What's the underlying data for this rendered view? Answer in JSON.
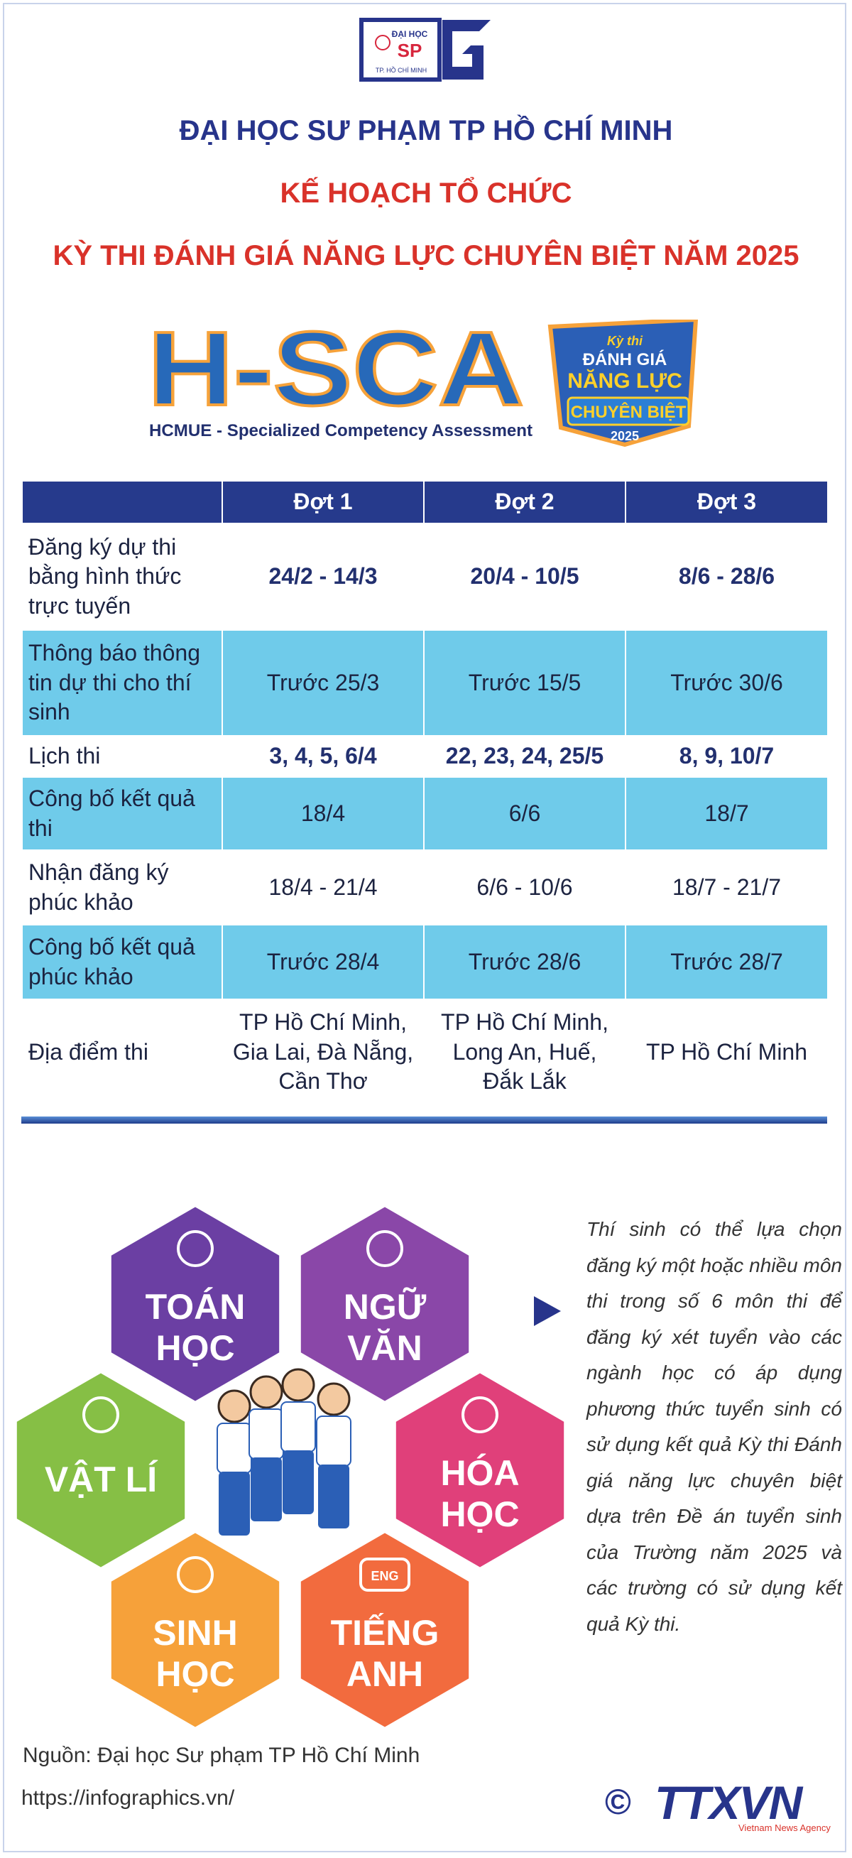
{
  "logo": {
    "top": "ĐẠI HỌC",
    "mark": "SP",
    "bottom": "TP. HỒ CHÍ MINH"
  },
  "header": {
    "title": "ĐẠI HỌC SƯ PHẠM TP HỒ CHÍ MINH",
    "subtitle": "KẾ HOẠCH TỔ CHỨC",
    "subtitle2": "KỲ THI ĐÁNH GIÁ NĂNG LỰC CHUYÊN BIỆT NĂM 2025"
  },
  "brand": {
    "name": "H-SCA",
    "tagline": "HCMUE - Specialized Competency Assessment",
    "badge": [
      "Kỳ thi",
      "ĐÁNH GIÁ",
      "NĂNG LỰC",
      "CHUYÊN BIỆT",
      "2025"
    ]
  },
  "table": {
    "columns": [
      "Đợt 1",
      "Đợt 2",
      "Đợt 3"
    ],
    "rows": [
      {
        "label": "Đăng ký dự thi bằng hình thức trực tuyến",
        "cells": [
          "24/2 - 14/3",
          "20/4 - 10/5",
          "8/6 - 28/6"
        ],
        "emphasis": true
      },
      {
        "label": "Thông báo thông tin dự thi cho thí sinh",
        "cells": [
          "Trước 25/3",
          "Trước 15/5",
          "Trước 30/6"
        ]
      },
      {
        "label": "Lịch thi",
        "cells": [
          "3, 4, 5, 6/4",
          "22, 23, 24, 25/5",
          "8, 9, 10/7"
        ],
        "emphasis": true
      },
      {
        "label": "Công bố kết quả thi",
        "cells": [
          "18/4",
          "6/6",
          "18/7"
        ]
      },
      {
        "label": "Nhận đăng ký phúc khảo",
        "cells": [
          "18/4 - 21/4",
          "6/6 - 10/6",
          "18/7 - 21/7"
        ]
      },
      {
        "label": "Công bố kết quả phúc khảo",
        "cells": [
          "Trước 28/4",
          "Trước 28/6",
          "Trước 28/7"
        ]
      },
      {
        "label": "Địa điểm thi",
        "cells": [
          "TP Hồ Chí Minh, Gia Lai, Đà Nẵng, Cần Thơ",
          "TP Hồ Chí Minh, Long An, Huế, Đắk Lắk",
          "TP Hồ Chí Minh"
        ]
      }
    ]
  },
  "subjects": [
    {
      "lines": [
        "TOÁN",
        "HỌC"
      ],
      "color": "#6b3fa3"
    },
    {
      "lines": [
        "NGỮ",
        "VĂN"
      ],
      "color": "#8a47a8"
    },
    {
      "lines": [
        "VẬT LÍ"
      ],
      "color": "#86bf45"
    },
    {
      "lines": [
        "HÓA",
        "HỌC"
      ],
      "color": "#e0407a"
    },
    {
      "lines": [
        "SINH",
        "HỌC"
      ],
      "color": "#f6a13a"
    },
    {
      "lines": [
        "TIẾNG",
        "ANH"
      ],
      "color": "#f26b3e"
    }
  ],
  "subject_icon_text": "ENG",
  "note": "Thí sinh có thể lựa chọn đăng ký một hoặc nhiều môn thi trong số 6 môn thi để đăng ký xét tuyển vào các ngành học có áp dụng phương thức tuyển sinh có sử dụng kết quả Kỳ thi Đánh giá năng lực chuyên biệt dựa trên Đề án tuyển sinh của Trường năm 2025 và các trường có sử dụng kết quả Kỳ thi.",
  "footer": {
    "source": "Nguồn: Đại học Sư phạm TP Hồ Chí Minh",
    "url": "https://infographics.vn/",
    "copyright": "©",
    "agency": "TTXVN",
    "agency_en": "Vietnam News Agency"
  }
}
